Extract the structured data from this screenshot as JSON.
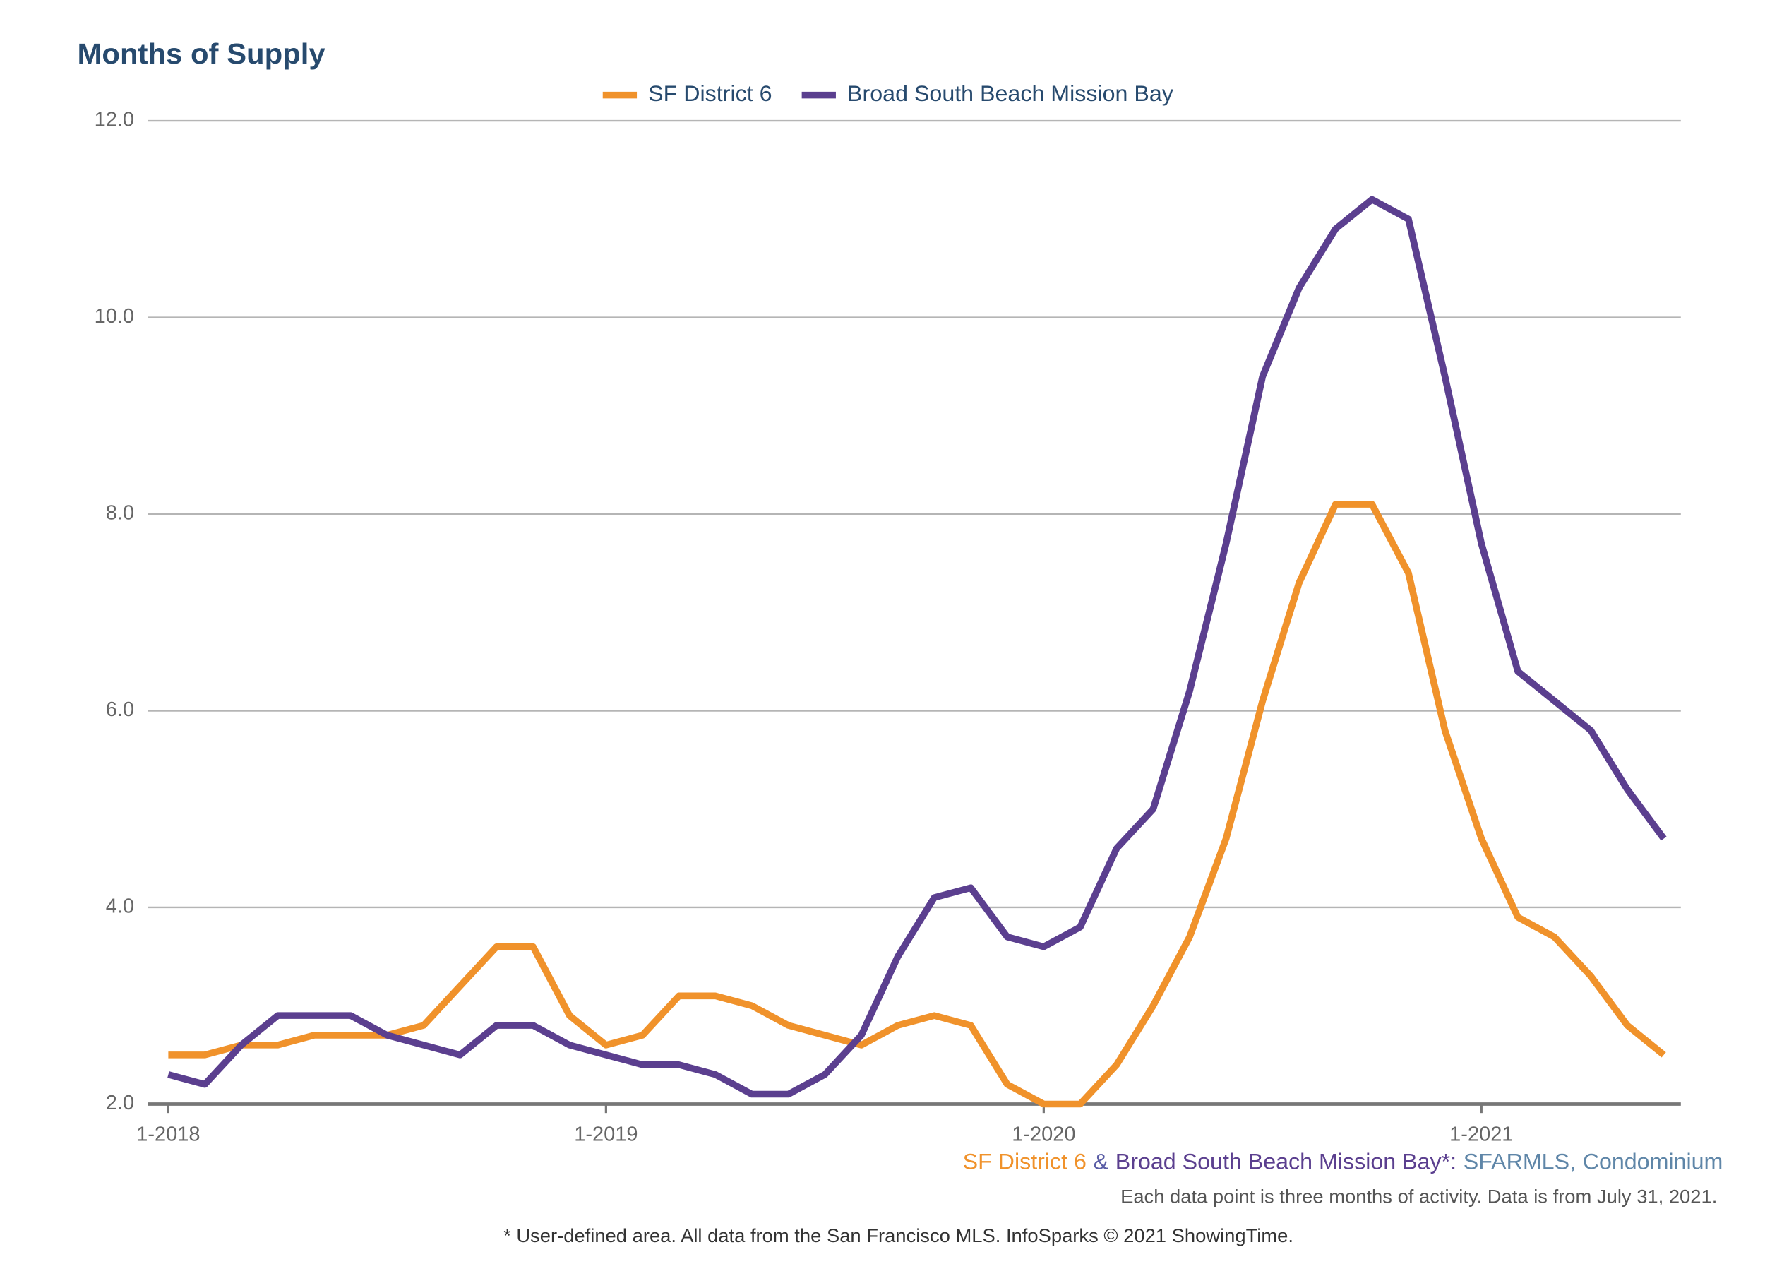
{
  "chart_data": {
    "type": "line",
    "title": "Months of Supply",
    "categories": [
      "1-2018",
      null,
      null,
      null,
      null,
      null,
      null,
      null,
      null,
      null,
      null,
      null,
      "1-2019",
      null,
      null,
      null,
      null,
      null,
      null,
      null,
      null,
      null,
      null,
      null,
      "1-2020",
      null,
      null,
      null,
      null,
      null,
      null,
      null,
      null,
      null,
      null,
      null,
      "1-2021",
      null,
      null,
      null,
      null,
      null
    ],
    "series": [
      {
        "name": "SF District 6",
        "color": "#f0922b",
        "values": [
          2.5,
          2.5,
          2.6,
          2.6,
          2.7,
          2.7,
          2.7,
          2.8,
          3.2,
          3.6,
          3.6,
          2.9,
          2.6,
          2.7,
          3.1,
          3.1,
          3.0,
          2.8,
          2.7,
          2.6,
          2.8,
          2.9,
          2.8,
          2.2,
          2.0,
          2.0,
          2.4,
          3.0,
          3.7,
          4.7,
          6.1,
          7.3,
          8.1,
          8.1,
          7.4,
          5.8,
          4.7,
          3.9,
          3.7,
          3.3,
          2.8,
          2.5
        ]
      },
      {
        "name": "Broad South Beach Mission Bay",
        "color": "#5b3f8f",
        "values": [
          2.3,
          2.2,
          2.6,
          2.9,
          2.9,
          2.9,
          2.7,
          2.6,
          2.5,
          2.8,
          2.8,
          2.6,
          2.5,
          2.4,
          2.4,
          2.3,
          2.1,
          2.1,
          2.3,
          2.7,
          3.5,
          4.1,
          4.2,
          3.7,
          3.6,
          3.8,
          4.6,
          5.0,
          6.2,
          7.7,
          9.4,
          10.3,
          10.9,
          11.2,
          11.0,
          9.4,
          7.7,
          6.4,
          6.1,
          5.8,
          5.2,
          4.7
        ]
      }
    ],
    "ylim": [
      2,
      12
    ],
    "yticks": [
      {
        "value": 2,
        "label": "2.0"
      },
      {
        "value": 4,
        "label": "4.0"
      },
      {
        "value": 6,
        "label": "6.0"
      },
      {
        "value": 8,
        "label": "8.0"
      },
      {
        "value": 10,
        "label": "10.0"
      },
      {
        "value": 12,
        "label": "12.0"
      }
    ],
    "grid": true,
    "legend": "top",
    "source": [
      {
        "text": "SF District 6",
        "color": "#f0922b"
      },
      {
        "text": "&",
        "color": "#5b5ea6"
      },
      {
        "text": "Broad South Beach Mission Bay*:",
        "color": "#5b3f8f"
      },
      {
        "text": "SFARMLS,",
        "color": "#5f86a8"
      },
      {
        "text": "Condominium",
        "color": "#5f86a8"
      }
    ],
    "note": "Each data point is three months of activity. Data is from July 31, 2021.",
    "disclaimer": "* User-defined area. All data from the San Francisco MLS. InfoSparks © 2021 ShowingTime."
  }
}
